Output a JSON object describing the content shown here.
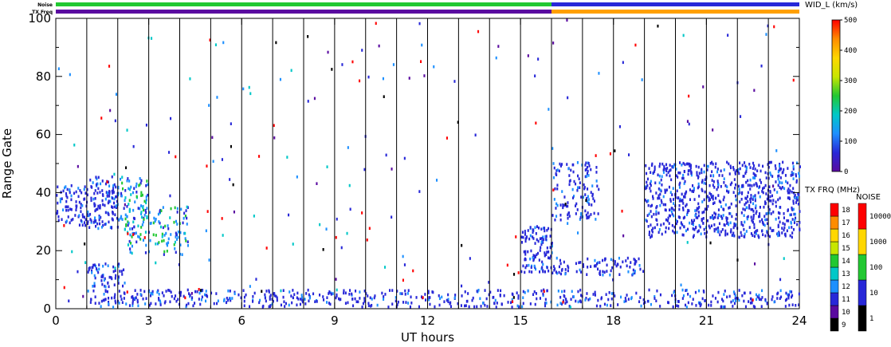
{
  "chart_data": {
    "type": "heatmap",
    "xlabel": "UT hours",
    "ylabel": "Range Gate",
    "xlim": [
      0,
      24
    ],
    "ylim": [
      0,
      100
    ],
    "x_ticks": [
      0,
      3,
      6,
      9,
      12,
      15,
      18,
      21,
      24
    ],
    "y_ticks": [
      0,
      20,
      40,
      60,
      80,
      100
    ],
    "hour_lines": [
      1,
      2,
      3,
      4,
      5,
      6,
      7,
      8,
      9,
      10,
      11,
      12,
      13,
      14,
      15,
      16,
      17,
      18,
      19,
      20,
      21,
      22,
      23
    ],
    "top_strip_labels": {
      "noise": "Noise",
      "tx_freq": "TX Freq"
    },
    "noise_strip": [
      {
        "from": 0,
        "to": 16,
        "color": "#22c832"
      },
      {
        "from": 16,
        "to": 24,
        "color": "#2828d8"
      }
    ],
    "freq_strip": [
      {
        "from": 0,
        "to": 16,
        "color": "#5a0aa0"
      },
      {
        "from": 16,
        "to": 24,
        "color": "#ffa000"
      }
    ],
    "scatter_regions": [
      {
        "x": [
          1.0,
          2.0
        ],
        "y": [
          27,
          45
        ],
        "density": 0.9,
        "palette": "blue"
      },
      {
        "x": [
          0.0,
          1.0
        ],
        "y": [
          28,
          42
        ],
        "density": 0.7,
        "palette": "blue"
      },
      {
        "x": [
          2.0,
          3.0
        ],
        "y": [
          30,
          46
        ],
        "density": 0.5,
        "palette": "cyanblue"
      },
      {
        "x": [
          2.2,
          4.3
        ],
        "y": [
          18,
          35
        ],
        "density": 0.45,
        "palette": "cyanblue"
      },
      {
        "x": [
          1.0,
          2.2
        ],
        "y": [
          7,
          15
        ],
        "density": 0.8,
        "palette": "blue"
      },
      {
        "x": [
          15.0,
          16.0
        ],
        "y": [
          12,
          28
        ],
        "density": 0.85,
        "palette": "blue"
      },
      {
        "x": [
          16.0,
          19.0
        ],
        "y": [
          11,
          17
        ],
        "density": 0.6,
        "palette": "blue"
      },
      {
        "x": [
          16.0,
          17.5
        ],
        "y": [
          30,
          50
        ],
        "density": 0.5,
        "palette": "blue"
      },
      {
        "x": [
          19.0,
          24.0
        ],
        "y": [
          24,
          50
        ],
        "density": 0.75,
        "palette": "blue"
      },
      {
        "x": [
          1.0,
          24.0
        ],
        "y": [
          0,
          6
        ],
        "density": 0.55,
        "palette": "blue"
      },
      {
        "x": [
          0.0,
          24.0
        ],
        "y": [
          0,
          100
        ],
        "density": 0.012,
        "palette": "mixed"
      }
    ],
    "colorbars": [
      {
        "name": "width",
        "title": "WID_L (km/s)",
        "range": [
          0,
          500
        ],
        "ticks": [
          "0",
          "100",
          "200",
          "300",
          "400",
          "500"
        ]
      },
      {
        "name": "tx-freq",
        "title": "TX FRQ (MHz)",
        "levels": [
          "9",
          "10",
          "11",
          "12",
          "13",
          "14",
          "15",
          "16",
          "17",
          "18"
        ],
        "colors": [
          "#000000",
          "#5a0aa0",
          "#2828d8",
          "#1e90ff",
          "#00c8c8",
          "#22c832",
          "#c8e600",
          "#ffd700",
          "#ff8c00",
          "#ff0000"
        ]
      },
      {
        "name": "noise",
        "title": "NOISE",
        "levels": [
          "1",
          "10",
          "100",
          "1000",
          "10000"
        ],
        "colors": [
          "#000000",
          "#2828d8",
          "#22c832",
          "#ffd700",
          "#ff0000"
        ]
      }
    ]
  },
  "colors": {
    "width_scale": [
      "#5a0aa0",
      "#2828d8",
      "#1e90ff",
      "#00c8c8",
      "#22c832",
      "#c8e600",
      "#ffd700",
      "#ff8c00",
      "#ff0000"
    ]
  }
}
